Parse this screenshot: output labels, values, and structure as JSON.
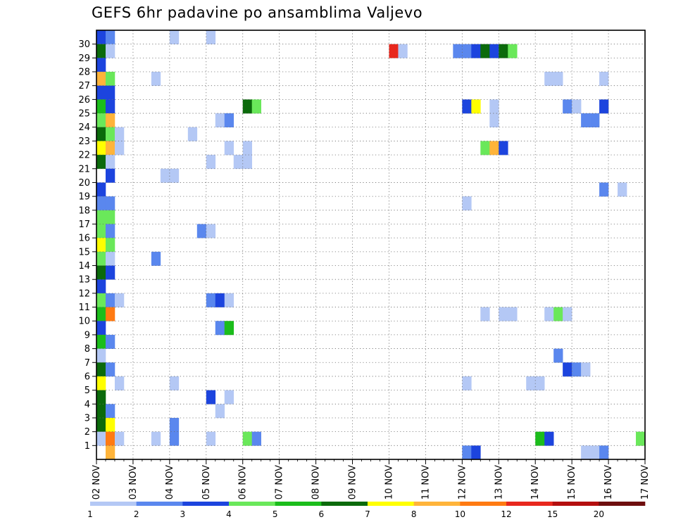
{
  "chart_data": {
    "type": "heatmap",
    "title": "GEFS 6hr padavine po ansamblima Valjevo",
    "xlabel": "",
    "ylabel": "",
    "x_ticks": [
      "02 NOV",
      "03 NOV",
      "04 NOV",
      "05 NOV",
      "06 NOV",
      "07 NOV",
      "08 NOV",
      "09 NOV",
      "10 NOV",
      "11 NOV",
      "12 NOV",
      "13 NOV",
      "14 NOV",
      "15 NOV",
      "16 NOV",
      "17 NOV"
    ],
    "y_ticks": [
      "1",
      "2",
      "3",
      "4",
      "5",
      "6",
      "7",
      "8",
      "9",
      "10",
      "11",
      "12",
      "13",
      "14",
      "15",
      "16",
      "17",
      "18",
      "19",
      "20",
      "21",
      "22",
      "23",
      "24",
      "25",
      "26",
      "27",
      "28",
      "29",
      "30"
    ],
    "steps_per_day": 4,
    "grid": true,
    "colorbar": {
      "position": "bottom",
      "labels": [
        "1",
        "2",
        "3",
        "4",
        "5",
        "6",
        "7",
        "8",
        "10",
        "12",
        "15",
        "20"
      ],
      "colors": [
        "#b4c8f5",
        "#5a87ee",
        "#1c44de",
        "#6ae85a",
        "#1bbd1b",
        "#0b6a0b",
        "#ffff00",
        "#ffb43a",
        "#ff7a12",
        "#e8281e",
        "#b40f0f",
        "#6e0e0e"
      ]
    },
    "cells": [
      {
        "member": 30,
        "step": 0,
        "bin": 3
      },
      {
        "member": 30,
        "step": 1,
        "bin": 2
      },
      {
        "member": 30,
        "step": 8,
        "bin": 1
      },
      {
        "member": 30,
        "step": 12,
        "bin": 1
      },
      {
        "member": 29,
        "step": 0,
        "bin": 6
      },
      {
        "member": 29,
        "step": 1,
        "bin": 1
      },
      {
        "member": 29,
        "step": 32,
        "bin": 10
      },
      {
        "member": 29,
        "step": 33,
        "bin": 1
      },
      {
        "member": 29,
        "step": 39,
        "bin": 2
      },
      {
        "member": 29,
        "step": 40,
        "bin": 2
      },
      {
        "member": 29,
        "step": 41,
        "bin": 3
      },
      {
        "member": 29,
        "step": 42,
        "bin": 6
      },
      {
        "member": 29,
        "step": 43,
        "bin": 3
      },
      {
        "member": 29,
        "step": 44,
        "bin": 6
      },
      {
        "member": 29,
        "step": 45,
        "bin": 4
      },
      {
        "member": 28,
        "step": 0,
        "bin": 3
      },
      {
        "member": 27,
        "step": 0,
        "bin": 8
      },
      {
        "member": 27,
        "step": 1,
        "bin": 4
      },
      {
        "member": 27,
        "step": 6,
        "bin": 1
      },
      {
        "member": 27,
        "step": 49,
        "bin": 1
      },
      {
        "member": 27,
        "step": 50,
        "bin": 1
      },
      {
        "member": 27,
        "step": 55,
        "bin": 1
      },
      {
        "member": 26,
        "step": 0,
        "bin": 3
      },
      {
        "member": 26,
        "step": 1,
        "bin": 3
      },
      {
        "member": 25,
        "step": 0,
        "bin": 5
      },
      {
        "member": 25,
        "step": 1,
        "bin": 3
      },
      {
        "member": 25,
        "step": 16,
        "bin": 6
      },
      {
        "member": 25,
        "step": 17,
        "bin": 4
      },
      {
        "member": 25,
        "step": 40,
        "bin": 3
      },
      {
        "member": 25,
        "step": 41,
        "bin": 7
      },
      {
        "member": 25,
        "step": 43,
        "bin": 1
      },
      {
        "member": 25,
        "step": 51,
        "bin": 2
      },
      {
        "member": 25,
        "step": 52,
        "bin": 1
      },
      {
        "member": 25,
        "step": 55,
        "bin": 3
      },
      {
        "member": 24,
        "step": 0,
        "bin": 4
      },
      {
        "member": 24,
        "step": 1,
        "bin": 8
      },
      {
        "member": 24,
        "step": 13,
        "bin": 1
      },
      {
        "member": 24,
        "step": 14,
        "bin": 2
      },
      {
        "member": 24,
        "step": 43,
        "bin": 1
      },
      {
        "member": 24,
        "step": 53,
        "bin": 2
      },
      {
        "member": 24,
        "step": 54,
        "bin": 2
      },
      {
        "member": 23,
        "step": 0,
        "bin": 6
      },
      {
        "member": 23,
        "step": 1,
        "bin": 4
      },
      {
        "member": 23,
        "step": 2,
        "bin": 1
      },
      {
        "member": 23,
        "step": 10,
        "bin": 1
      },
      {
        "member": 22,
        "step": 0,
        "bin": 7
      },
      {
        "member": 22,
        "step": 1,
        "bin": 8
      },
      {
        "member": 22,
        "step": 2,
        "bin": 1
      },
      {
        "member": 22,
        "step": 14,
        "bin": 1
      },
      {
        "member": 22,
        "step": 16,
        "bin": 1
      },
      {
        "member": 22,
        "step": 42,
        "bin": 4
      },
      {
        "member": 22,
        "step": 43,
        "bin": 8
      },
      {
        "member": 22,
        "step": 44,
        "bin": 3
      },
      {
        "member": 21,
        "step": 0,
        "bin": 6
      },
      {
        "member": 21,
        "step": 1,
        "bin": 1
      },
      {
        "member": 21,
        "step": 12,
        "bin": 1
      },
      {
        "member": 21,
        "step": 15,
        "bin": 1
      },
      {
        "member": 21,
        "step": 16,
        "bin": 1
      },
      {
        "member": 20,
        "step": 1,
        "bin": 3
      },
      {
        "member": 20,
        "step": 7,
        "bin": 1
      },
      {
        "member": 20,
        "step": 8,
        "bin": 1
      },
      {
        "member": 19,
        "step": 0,
        "bin": 3
      },
      {
        "member": 19,
        "step": 55,
        "bin": 2
      },
      {
        "member": 19,
        "step": 57,
        "bin": 1
      },
      {
        "member": 18,
        "step": 0,
        "bin": 2
      },
      {
        "member": 18,
        "step": 1,
        "bin": 2
      },
      {
        "member": 18,
        "step": 40,
        "bin": 1
      },
      {
        "member": 17,
        "step": 0,
        "bin": 4
      },
      {
        "member": 17,
        "step": 1,
        "bin": 4
      },
      {
        "member": 16,
        "step": 0,
        "bin": 4
      },
      {
        "member": 16,
        "step": 1,
        "bin": 2
      },
      {
        "member": 16,
        "step": 11,
        "bin": 2
      },
      {
        "member": 16,
        "step": 12,
        "bin": 1
      },
      {
        "member": 15,
        "step": 0,
        "bin": 7
      },
      {
        "member": 15,
        "step": 1,
        "bin": 4
      },
      {
        "member": 14,
        "step": 0,
        "bin": 4
      },
      {
        "member": 14,
        "step": 1,
        "bin": 1
      },
      {
        "member": 14,
        "step": 6,
        "bin": 2
      },
      {
        "member": 13,
        "step": 0,
        "bin": 6
      },
      {
        "member": 13,
        "step": 1,
        "bin": 3
      },
      {
        "member": 12,
        "step": 0,
        "bin": 3
      },
      {
        "member": 11,
        "step": 0,
        "bin": 4
      },
      {
        "member": 11,
        "step": 1,
        "bin": 2
      },
      {
        "member": 11,
        "step": 2,
        "bin": 1
      },
      {
        "member": 11,
        "step": 12,
        "bin": 2
      },
      {
        "member": 11,
        "step": 13,
        "bin": 3
      },
      {
        "member": 11,
        "step": 14,
        "bin": 1
      },
      {
        "member": 10,
        "step": 0,
        "bin": 5
      },
      {
        "member": 10,
        "step": 1,
        "bin": 9
      },
      {
        "member": 10,
        "step": 42,
        "bin": 1
      },
      {
        "member": 10,
        "step": 44,
        "bin": 1
      },
      {
        "member": 10,
        "step": 45,
        "bin": 1
      },
      {
        "member": 10,
        "step": 49,
        "bin": 1
      },
      {
        "member": 10,
        "step": 50,
        "bin": 4
      },
      {
        "member": 10,
        "step": 51,
        "bin": 1
      },
      {
        "member": 9,
        "step": 0,
        "bin": 3
      },
      {
        "member": 9,
        "step": 13,
        "bin": 2
      },
      {
        "member": 9,
        "step": 14,
        "bin": 5
      },
      {
        "member": 8,
        "step": 0,
        "bin": 5
      },
      {
        "member": 8,
        "step": 1,
        "bin": 2
      },
      {
        "member": 7,
        "step": 0,
        "bin": 1
      },
      {
        "member": 7,
        "step": 50,
        "bin": 2
      },
      {
        "member": 6,
        "step": 0,
        "bin": 6
      },
      {
        "member": 6,
        "step": 1,
        "bin": 2
      },
      {
        "member": 6,
        "step": 51,
        "bin": 3
      },
      {
        "member": 6,
        "step": 52,
        "bin": 2
      },
      {
        "member": 6,
        "step": 53,
        "bin": 1
      },
      {
        "member": 5,
        "step": 0,
        "bin": 7
      },
      {
        "member": 5,
        "step": 2,
        "bin": 1
      },
      {
        "member": 5,
        "step": 8,
        "bin": 1
      },
      {
        "member": 5,
        "step": 40,
        "bin": 1
      },
      {
        "member": 5,
        "step": 47,
        "bin": 1
      },
      {
        "member": 5,
        "step": 48,
        "bin": 1
      },
      {
        "member": 4,
        "step": 0,
        "bin": 6
      },
      {
        "member": 4,
        "step": 12,
        "bin": 3
      },
      {
        "member": 4,
        "step": 14,
        "bin": 1
      },
      {
        "member": 3,
        "step": 0,
        "bin": 6
      },
      {
        "member": 3,
        "step": 1,
        "bin": 2
      },
      {
        "member": 3,
        "step": 13,
        "bin": 1
      },
      {
        "member": 2,
        "step": 0,
        "bin": 6
      },
      {
        "member": 2,
        "step": 1,
        "bin": 7
      },
      {
        "member": 2,
        "step": 8,
        "bin": 2
      },
      {
        "member": 1,
        "step": 0,
        "bin": 1
      },
      {
        "member": 1,
        "step": 1,
        "bin": 9
      },
      {
        "member": 1,
        "step": 2,
        "bin": 1
      },
      {
        "member": 1,
        "step": 6,
        "bin": 1
      },
      {
        "member": 1,
        "step": 8,
        "bin": 2
      },
      {
        "member": 1,
        "step": 12,
        "bin": 1
      },
      {
        "member": 1,
        "step": 16,
        "bin": 4
      },
      {
        "member": 1,
        "step": 17,
        "bin": 2
      },
      {
        "member": 1,
        "step": 48,
        "bin": 5
      },
      {
        "member": 1,
        "step": 49,
        "bin": 3
      },
      {
        "member": 1,
        "step": 59,
        "bin": 4
      },
      {
        "member": 0,
        "step": 1,
        "bin": 8
      },
      {
        "member": 0,
        "step": 40,
        "bin": 2
      },
      {
        "member": 0,
        "step": 41,
        "bin": 3
      },
      {
        "member": 0,
        "step": 53,
        "bin": 1
      },
      {
        "member": 0,
        "step": 54,
        "bin": 1
      },
      {
        "member": 0,
        "step": 55,
        "bin": 2
      }
    ]
  }
}
